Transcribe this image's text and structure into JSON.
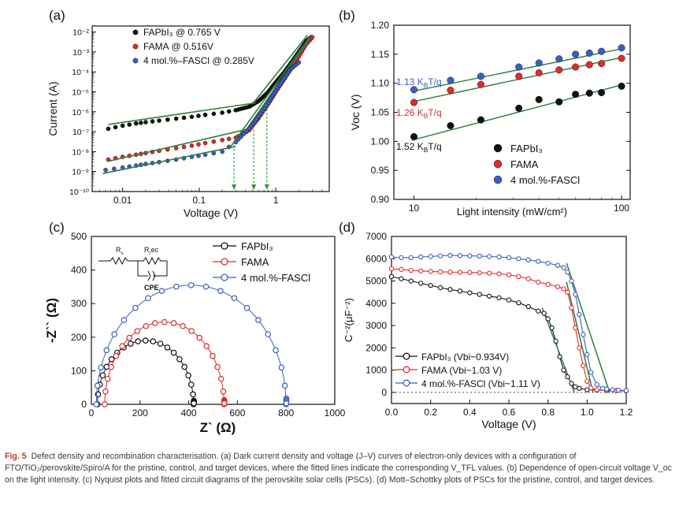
{
  "colors": {
    "black": "#111111",
    "red": "#e02a2a",
    "blue": "#3a5fc4",
    "fit": "#2e7d3e",
    "drop": "#2e9a3e"
  },
  "caption": {
    "label": "Fig. 5",
    "text": "Defect density and recombination characterisation. (a) Dark current density and voltage (J–V) curves of electron-only devices with a configuration of FTO/TiO₂/perovskite/Spiro/A for the pristine, control, and target devices, where the fitted lines indicate the corresponding V_TFL values. (b) Dependence of open-circuit voltage V_oc on the light intensity. (c) Nyquist plots and fitted circuit diagrams of the perovskite solar cells (PSCs). (d) Mott–Schottky plots of PSCs for the pristine, control, and target devices."
  },
  "chart_data": [
    {
      "panel": "(a)",
      "type": "scatter",
      "xscale": "log",
      "yscale": "log",
      "xlabel": "Voltage (V)",
      "ylabel": "Current (A)",
      "xlim": [
        0.004,
        5
      ],
      "ylim": [
        1e-10,
        0.02
      ],
      "xticks": [
        {
          "v": 0.01,
          "label": "0.01"
        },
        {
          "v": 0.1,
          "label": "0.1"
        },
        {
          "v": 1,
          "label": "1"
        }
      ],
      "yticks": [
        {
          "v": 1e-10,
          "label": "10⁻¹⁰"
        },
        {
          "v": 1e-09,
          "label": "10⁻⁹"
        },
        {
          "v": 1e-08,
          "label": "10⁻⁸"
        },
        {
          "v": 1e-07,
          "label": "10⁻⁷"
        },
        {
          "v": 1e-06,
          "label": "10⁻⁶"
        },
        {
          "v": 1e-05,
          "label": "10⁻⁵"
        },
        {
          "v": 0.0001,
          "label": "10⁻⁴"
        },
        {
          "v": 0.001,
          "label": "10⁻³"
        },
        {
          "v": 0.01,
          "label": "10⁻²"
        }
      ],
      "legend_position": "top-left",
      "series": [
        {
          "name": "FAPbI₃ @ 0.765 V",
          "color": "black",
          "vtfl": 0.765,
          "x": [
            0.0065,
            0.01,
            0.015,
            0.02,
            0.03,
            0.05,
            0.08,
            0.12,
            0.2,
            0.3,
            0.45,
            0.6,
            0.8,
            1.0,
            1.3,
            1.6,
            2.0,
            2.5,
            2.9
          ],
          "y": [
            1.4e-07,
            2e-07,
            2.6e-07,
            3e-07,
            3.6e-07,
            4.5e-07,
            5.6e-07,
            7e-07,
            9e-07,
            1.2e-06,
            1.8e-06,
            3.5e-06,
            1e-05,
            3e-05,
            0.0001,
            0.0003,
            0.001,
            0.0035,
            0.0055
          ],
          "fit_lines": [
            {
              "x": [
                0.0065,
                0.55
              ],
              "y": [
                2.3e-07,
                2.8e-06
              ]
            },
            {
              "x": [
                0.5,
                2.6
              ],
              "y": [
                2.5e-06,
                0.007
              ]
            }
          ]
        },
        {
          "name": "FAMA @ 0.516V",
          "color": "red",
          "vtfl": 0.516,
          "x": [
            0.0065,
            0.01,
            0.015,
            0.02,
            0.03,
            0.05,
            0.08,
            0.12,
            0.2,
            0.3,
            0.45,
            0.6,
            0.8,
            1.0,
            1.3,
            1.6,
            2.0,
            2.5,
            3.0
          ],
          "y": [
            4e-09,
            5.5e-09,
            7e-09,
            8.5e-09,
            1.1e-08,
            1.5e-08,
            2e-08,
            2.7e-08,
            3.8e-08,
            5e-08,
            1.2e-07,
            5e-07,
            2.5e-06,
            1e-05,
            4.5e-05,
            0.00016,
            0.0006,
            0.0025,
            0.0055
          ],
          "fit_lines": [
            {
              "x": [
                0.0065,
                0.45
              ],
              "y": [
                3.3e-09,
                1.4e-07
              ]
            },
            {
              "x": [
                0.35,
                2.8
              ],
              "y": [
                5e-08,
                0.005
              ]
            }
          ]
        },
        {
          "name": "4 mol.%–FASCl @ 0.285V",
          "color": "blue",
          "vtfl": 0.285,
          "x": [
            0.006,
            0.01,
            0.015,
            0.02,
            0.03,
            0.05,
            0.08,
            0.12,
            0.2,
            0.3,
            0.45,
            0.6,
            0.8,
            1.0,
            1.3,
            1.6,
            2.0
          ],
          "y": [
            1.2e-09,
            1.6e-09,
            2e-09,
            2.4e-09,
            3e-09,
            4e-09,
            5.5e-09,
            7e-09,
            1e-08,
            3e-08,
            1.5e-07,
            6e-07,
            3e-06,
            1.2e-05,
            5e-05,
            0.00015,
            0.0003
          ],
          "fit_lines": [
            {
              "x": [
                0.0055,
                0.3
              ],
              "y": [
                8e-10,
                1.8e-08
              ]
            },
            {
              "x": [
                0.25,
                2.8
              ],
              "y": [
                1.5e-08,
                0.006
              ]
            }
          ]
        }
      ]
    },
    {
      "panel": "(b)",
      "type": "scatter",
      "xscale": "log",
      "xlabel": "Light intensity (mW/cm²)",
      "ylabel": "Voc (V)",
      "xlim": [
        8,
        110
      ],
      "ylim": [
        0.9,
        1.2
      ],
      "xticks": [
        {
          "v": 10,
          "label": "10"
        },
        {
          "v": 100,
          "label": "100"
        }
      ],
      "yticks": [
        {
          "v": 0.9,
          "label": "0.90"
        },
        {
          "v": 0.95,
          "label": "0.95"
        },
        {
          "v": 1.0,
          "label": "1.00"
        },
        {
          "v": 1.05,
          "label": "1.05"
        },
        {
          "v": 1.1,
          "label": "1.10"
        },
        {
          "v": 1.15,
          "label": "1.15"
        },
        {
          "v": 1.2,
          "label": "1.20"
        }
      ],
      "legend_position": "bottom-right",
      "series": [
        {
          "name": "FAPbI₃",
          "color": "black",
          "slope_label": "1.52 K_BT/q",
          "x": [
            10,
            15,
            21,
            32,
            40,
            50,
            60,
            70,
            80,
            100
          ],
          "y": [
            1.008,
            1.027,
            1.037,
            1.057,
            1.072,
            1.068,
            1.081,
            1.083,
            1.084,
            1.095
          ],
          "fit": {
            "x": [
              9.8,
              102
            ],
            "y": [
              1.002,
              1.098
            ]
          }
        },
        {
          "name": "FAMA",
          "color": "red",
          "slope_label": "1.26 K_BT/q",
          "x": [
            10,
            15,
            21,
            32,
            40,
            50,
            60,
            70,
            80,
            100
          ],
          "y": [
            1.067,
            1.088,
            1.098,
            1.112,
            1.118,
            1.123,
            1.128,
            1.132,
            1.134,
            1.143
          ],
          "fit": {
            "x": [
              9.8,
              102
            ],
            "y": [
              1.068,
              1.145
            ]
          }
        },
        {
          "name": "4 mol.%-FASCl",
          "color": "blue",
          "slope_label": "1.13 K_BT/q",
          "x": [
            10,
            15,
            21,
            32,
            40,
            50,
            60,
            70,
            80,
            100
          ],
          "y": [
            1.089,
            1.105,
            1.112,
            1.128,
            1.135,
            1.142,
            1.15,
            1.152,
            1.155,
            1.161
          ],
          "fit": {
            "x": [
              9.8,
              102
            ],
            "y": [
              1.086,
              1.16
            ]
          }
        }
      ]
    },
    {
      "panel": "(c)",
      "type": "scatter",
      "xlabel": "Z` (Ω)",
      "ylabel": "-Z`` (Ω)",
      "xlim": [
        0,
        1000
      ],
      "ylim": [
        0,
        500
      ],
      "xticks": [
        0,
        200,
        400,
        600,
        800,
        1000
      ],
      "yticks": [
        0,
        100,
        200,
        300,
        400,
        500
      ],
      "legend_position": "top-right",
      "circuit_labels": {
        "rs": "R_s",
        "rrec": "R_rec",
        "cpe": "CPE"
      },
      "series": [
        {
          "name": "FAPbI₃",
          "color": "black",
          "x_start": 25,
          "x_end": 420,
          "peak": 190
        },
        {
          "name": "FAMA",
          "color": "red",
          "x_start": 55,
          "x_end": 545,
          "peak": 245
        },
        {
          "name": "4 mol.%-FASCl",
          "color": "blue",
          "x_start": 20,
          "x_end": 800,
          "peak": 355
        }
      ]
    },
    {
      "panel": "(d)",
      "type": "line",
      "xlabel": "Voltage (V)",
      "ylabel": "C⁻²(μF⁻²)",
      "xlim": [
        0.0,
        1.2
      ],
      "ylim": [
        -500,
        7000
      ],
      "xticks": [
        {
          "v": 0.0,
          "label": "0.0"
        },
        {
          "v": 0.2,
          "label": "0.2"
        },
        {
          "v": 0.4,
          "label": "0.4"
        },
        {
          "v": 0.6,
          "label": "0.6"
        },
        {
          "v": 0.8,
          "label": "0.8"
        },
        {
          "v": 1.0,
          "label": "1.0"
        },
        {
          "v": 1.2,
          "label": "1.2"
        }
      ],
      "yticks": [
        0,
        1000,
        2000,
        3000,
        4000,
        5000,
        6000,
        7000
      ],
      "legend_position": "bottom-left",
      "series": [
        {
          "name": "FAPbI₃ (Vbi~0.934V)",
          "color": "black",
          "x": [
            0.0,
            0.05,
            0.1,
            0.15,
            0.2,
            0.25,
            0.3,
            0.35,
            0.4,
            0.45,
            0.5,
            0.55,
            0.6,
            0.65,
            0.7,
            0.75,
            0.78,
            0.8,
            0.82,
            0.84,
            0.86,
            0.88,
            0.9,
            0.92,
            0.94,
            0.96,
            1.0,
            1.05,
            1.1,
            1.15,
            1.2
          ],
          "y": [
            5200,
            5100,
            5000,
            4900,
            4800,
            4700,
            4620,
            4550,
            4470,
            4400,
            4320,
            4250,
            4150,
            4020,
            3850,
            3650,
            3550,
            3300,
            2900,
            2300,
            1600,
            1000,
            700,
            400,
            250,
            180,
            120,
            100,
            90,
            80,
            70
          ],
          "fit": {
            "x": [
              0.77,
              0.935
            ],
            "y": [
              3800,
              0
            ]
          }
        },
        {
          "name": "FAMA  (Vbi~1.03 V)",
          "color": "red",
          "x": [
            0.0,
            0.05,
            0.1,
            0.15,
            0.2,
            0.25,
            0.3,
            0.35,
            0.4,
            0.45,
            0.5,
            0.55,
            0.6,
            0.65,
            0.7,
            0.75,
            0.8,
            0.85,
            0.88,
            0.9,
            0.92,
            0.94,
            0.96,
            0.98,
            1.0,
            1.02,
            1.05,
            1.1,
            1.15,
            1.2
          ],
          "y": [
            5550,
            5520,
            5480,
            5450,
            5430,
            5410,
            5400,
            5390,
            5380,
            5370,
            5350,
            5320,
            5280,
            5200,
            5100,
            4950,
            4850,
            4750,
            4650,
            4500,
            3800,
            2900,
            2000,
            1200,
            500,
            200,
            120,
            100,
            90,
            80
          ],
          "fit": {
            "x": [
              0.895,
              1.03
            ],
            "y": [
              4950,
              0
            ]
          }
        },
        {
          "name": "4 mol.%-FASCl (Vbi~1.11 V)",
          "color": "blue",
          "x": [
            0.0,
            0.05,
            0.1,
            0.15,
            0.2,
            0.25,
            0.3,
            0.35,
            0.4,
            0.45,
            0.5,
            0.55,
            0.6,
            0.65,
            0.7,
            0.75,
            0.8,
            0.85,
            0.88,
            0.9,
            0.92,
            0.94,
            0.96,
            0.98,
            1.0,
            1.02,
            1.05,
            1.08,
            1.1,
            1.13,
            1.16,
            1.2
          ],
          "y": [
            6080,
            6050,
            6050,
            6080,
            6100,
            6130,
            6150,
            6140,
            6130,
            6120,
            6100,
            6080,
            6050,
            6000,
            5950,
            5880,
            5800,
            5700,
            5600,
            5400,
            5000,
            4400,
            3500,
            2600,
            1700,
            900,
            350,
            180,
            150,
            120,
            100,
            80
          ],
          "fit": {
            "x": [
              0.895,
              1.115
            ],
            "y": [
              5800,
              0
            ]
          }
        }
      ]
    }
  ]
}
